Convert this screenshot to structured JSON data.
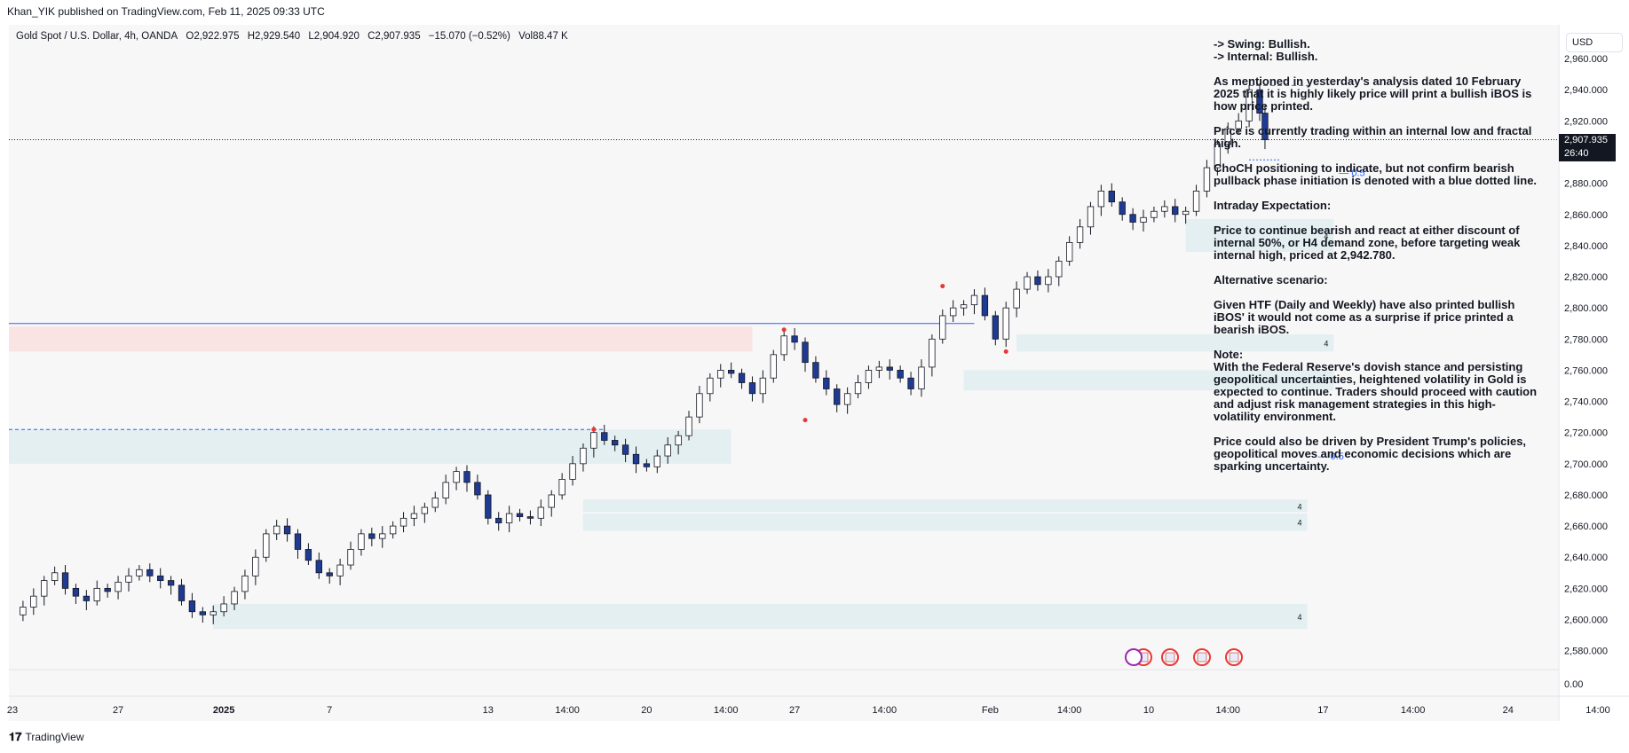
{
  "header": {
    "publisher_line": "Khan_YIK published on TradingView.com, Feb 11, 2025 09:33 UTC"
  },
  "symbol": {
    "name": "Gold Spot / U.S. Dollar, 4h, OANDA",
    "open": "O2,922.975",
    "high": "H2,929.540",
    "low": "L2,904.920",
    "close": "C2,907.935",
    "change": "−15.070 (−0.52%)",
    "volume": "Vol88.47 K"
  },
  "currency_button": "USD",
  "price_tag": {
    "price": "2,907.935",
    "countdown": "26:40"
  },
  "notes": [
    "-> Swing:  Bullish.\n-> Internal:  Bullish.",
    "As mentioned in yesterday's analysis dated 10 February 2025 that it is highly likely price will print a bullish iBOS is how price printed.",
    "Price is currently trading within an internal low and fractal high.",
    "ChoCH positioning to indicate, but not confirm bearish pullback phase initiation is denoted with a blue dotted line.",
    "Intraday Expectation:",
    "Price to continue bearish and react at either discount of internal 50%, or H4 demand zone, before targeting weak internal high, priced at 2,942.780.",
    "Alternative scenario:",
    "Given HTF (Daily and Weekly) have also printed bullish iBOS' it would not come as a surprise if price printed a bearish iBOS.",
    "Note:\nWith the Federal Reserve's dovish stance and persisting geopolitical uncertainties, heightened volatility in Gold is expected to continue. Traders should proceed with caution and adjust risk management strategies in this high-volatility environment.",
    "Price could also be driven by President Trump's policies, geopolitical moves and economic decisions which are sparking uncertainty."
  ],
  "footer": {
    "brand": "TradingView"
  },
  "colors": {
    "bull": "#ffffff",
    "bear": "#1f3a93",
    "wick": "#131722",
    "demand_zone": "#e3eff0",
    "supply_zone": "#f9e3e3",
    "blue_line": "#2962ff",
    "red": "#e53935"
  },
  "chart_data": {
    "type": "candlestick",
    "ylim": [
      2565,
      2972
    ],
    "y_ticks": [
      "2,960.000",
      "2,940.000",
      "2,920.000",
      "2,900.000",
      "2,880.000",
      "2,860.000",
      "2,840.000",
      "2,820.000",
      "2,800.000",
      "2,780.000",
      "2,760.000",
      "2,740.000",
      "2,720.000",
      "2,700.000",
      "2,680.000",
      "2,660.000",
      "2,640.000",
      "2,620.000",
      "2,600.000",
      "2,580.000"
    ],
    "y_tick_values": [
      2960,
      2940,
      2920,
      2900,
      2880,
      2860,
      2840,
      2820,
      2800,
      2780,
      2760,
      2740,
      2720,
      2700,
      2680,
      2660,
      2640,
      2620,
      2600,
      2580
    ],
    "volume_axis_label": "0.00",
    "x_ticks": [
      "23",
      "27",
      "2025",
      "7",
      "13",
      "14:00",
      "20",
      "14:00",
      "27",
      "14:00",
      "Feb",
      "14:00",
      "10",
      "14:00",
      "17",
      "14:00",
      "24",
      "14:00"
    ],
    "x_tick_positions": [
      0,
      20,
      40,
      60,
      90,
      105,
      120,
      135,
      148,
      165,
      185,
      200,
      215,
      230,
      248,
      265,
      283,
      300
    ],
    "last_price": 2907.935,
    "path_points": [
      [
        0,
        2603
      ],
      [
        2,
        2608
      ],
      [
        4,
        2615
      ],
      [
        6,
        2625
      ],
      [
        8,
        2630
      ],
      [
        10,
        2620
      ],
      [
        12,
        2615
      ],
      [
        14,
        2612
      ],
      [
        16,
        2620
      ],
      [
        18,
        2618
      ],
      [
        20,
        2624
      ],
      [
        22,
        2628
      ],
      [
        24,
        2632
      ],
      [
        26,
        2628
      ],
      [
        28,
        2625
      ],
      [
        30,
        2622
      ],
      [
        32,
        2612
      ],
      [
        34,
        2605
      ],
      [
        36,
        2603
      ],
      [
        38,
        2605
      ],
      [
        40,
        2610
      ],
      [
        42,
        2618
      ],
      [
        44,
        2628
      ],
      [
        46,
        2640
      ],
      [
        48,
        2655
      ],
      [
        50,
        2660
      ],
      [
        52,
        2655
      ],
      [
        54,
        2645
      ],
      [
        56,
        2638
      ],
      [
        58,
        2630
      ],
      [
        60,
        2628
      ],
      [
        62,
        2635
      ],
      [
        64,
        2645
      ],
      [
        66,
        2655
      ],
      [
        68,
        2652
      ],
      [
        70,
        2655
      ],
      [
        72,
        2660
      ],
      [
        74,
        2665
      ],
      [
        76,
        2668
      ],
      [
        78,
        2672
      ],
      [
        80,
        2678
      ],
      [
        82,
        2688
      ],
      [
        84,
        2695
      ],
      [
        86,
        2688
      ],
      [
        88,
        2680
      ],
      [
        90,
        2665
      ],
      [
        92,
        2662
      ],
      [
        94,
        2668
      ],
      [
        96,
        2666
      ],
      [
        98,
        2665
      ],
      [
        100,
        2672
      ],
      [
        102,
        2680
      ],
      [
        104,
        2690
      ],
      [
        106,
        2700
      ],
      [
        108,
        2710
      ],
      [
        110,
        2720
      ],
      [
        112,
        2715
      ],
      [
        114,
        2712
      ],
      [
        116,
        2706
      ],
      [
        118,
        2700
      ],
      [
        120,
        2698
      ],
      [
        122,
        2705
      ],
      [
        124,
        2712
      ],
      [
        126,
        2718
      ],
      [
        128,
        2730
      ],
      [
        130,
        2745
      ],
      [
        132,
        2755
      ],
      [
        134,
        2760
      ],
      [
        136,
        2758
      ],
      [
        138,
        2752
      ],
      [
        140,
        2745
      ],
      [
        142,
        2755
      ],
      [
        144,
        2770
      ],
      [
        146,
        2782
      ],
      [
        148,
        2778
      ],
      [
        150,
        2765
      ],
      [
        152,
        2755
      ],
      [
        154,
        2748
      ],
      [
        156,
        2738
      ],
      [
        158,
        2745
      ],
      [
        160,
        2752
      ],
      [
        162,
        2760
      ],
      [
        164,
        2762
      ],
      [
        166,
        2760
      ],
      [
        168,
        2755
      ],
      [
        170,
        2748
      ],
      [
        172,
        2762
      ],
      [
        174,
        2780
      ],
      [
        176,
        2795
      ],
      [
        178,
        2800
      ],
      [
        180,
        2802
      ],
      [
        182,
        2808
      ],
      [
        184,
        2795
      ],
      [
        186,
        2780
      ],
      [
        188,
        2800
      ],
      [
        190,
        2812
      ],
      [
        192,
        2820
      ],
      [
        194,
        2815
      ],
      [
        196,
        2820
      ],
      [
        198,
        2830
      ],
      [
        200,
        2842
      ],
      [
        202,
        2852
      ],
      [
        204,
        2865
      ],
      [
        206,
        2875
      ],
      [
        208,
        2868
      ],
      [
        210,
        2860
      ],
      [
        212,
        2855
      ],
      [
        214,
        2858
      ],
      [
        216,
        2862
      ],
      [
        218,
        2865
      ],
      [
        220,
        2860
      ],
      [
        222,
        2862
      ],
      [
        224,
        2875
      ],
      [
        226,
        2890
      ],
      [
        228,
        2905
      ],
      [
        230,
        2915
      ],
      [
        232,
        2920
      ],
      [
        234,
        2940
      ],
      [
        236,
        2925
      ],
      [
        237,
        2907.935
      ]
    ],
    "zones": [
      {
        "kind": "demand",
        "y0": 2700,
        "y1": 2722,
        "x0": -4,
        "x1": 136,
        "label": ""
      },
      {
        "kind": "supply",
        "y0": 2772,
        "y1": 2788,
        "x0": -4,
        "x1": 140,
        "label": ""
      },
      {
        "kind": "demand",
        "y0": 2772,
        "y1": 2783,
        "x0": 190,
        "x1": 250,
        "label": "4"
      },
      {
        "kind": "demand",
        "y0": 2747,
        "y1": 2760,
        "x0": 180,
        "x1": 250,
        "label": "4"
      },
      {
        "kind": "demand",
        "y0": 2836,
        "y1": 2857,
        "x0": 222,
        "x1": 250,
        "label": "4"
      },
      {
        "kind": "demand",
        "y0": 2669,
        "y1": 2677,
        "x0": 108,
        "x1": 245,
        "label": "4"
      },
      {
        "kind": "demand",
        "y0": 2657,
        "y1": 2668,
        "x0": 108,
        "x1": 245,
        "label": "4"
      },
      {
        "kind": "demand",
        "y0": 2594,
        "y1": 2610,
        "x0": 38,
        "x1": 245,
        "label": "4"
      }
    ],
    "annotations": [
      {
        "text": "0.5",
        "y": 2887,
        "x": 251
      },
      {
        "text": "0.5",
        "y": 2705,
        "x": 247
      }
    ]
  }
}
